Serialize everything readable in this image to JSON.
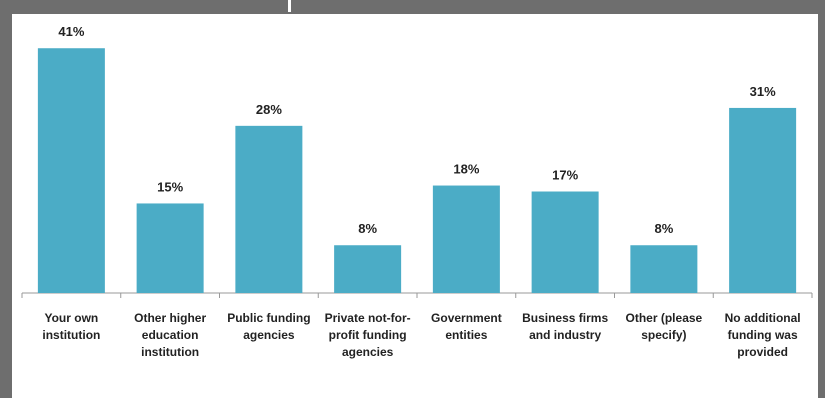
{
  "chart_data": {
    "type": "bar",
    "categories": [
      "Your own institution",
      "Other higher education institution",
      "Public funding agencies",
      "Private not-for-profit funding agencies",
      "Government entities",
      "Business firms and industry",
      "Other (please specify)",
      "No additional funding was provided"
    ],
    "values": [
      41,
      15,
      28,
      8,
      18,
      17,
      8,
      31
    ],
    "value_labels": [
      "41%",
      "15%",
      "28%",
      "8%",
      "18%",
      "17%",
      "8%",
      "31%"
    ],
    "color": "#4bacc6"
  }
}
